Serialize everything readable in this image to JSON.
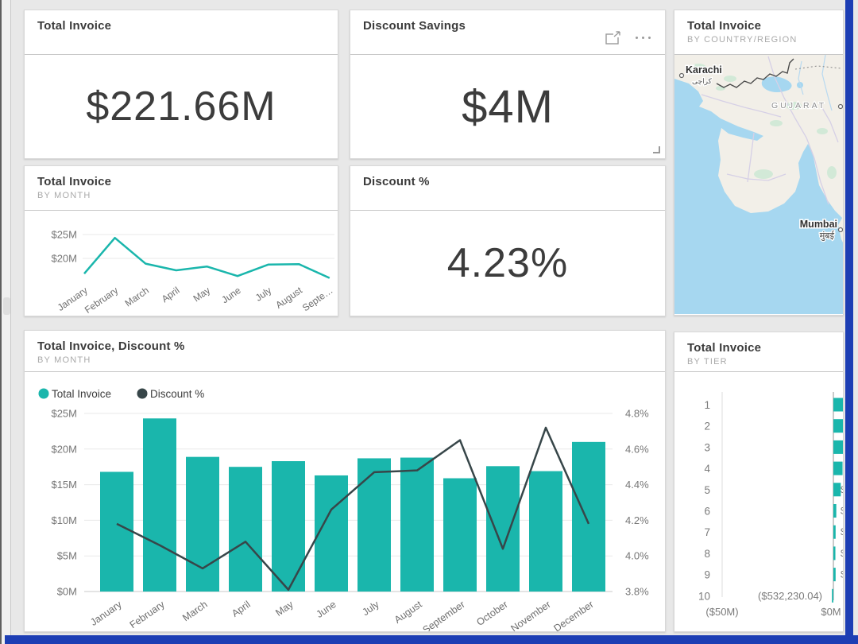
{
  "window": {
    "background": "#e8e8e8",
    "frame_color": "#1d3eb4",
    "scrollbar_track": "#f0f0f0",
    "scrollbar_thumb": "#dedede"
  },
  "colors": {
    "teal": "#1AB6AC",
    "dark": "#374649",
    "title": "#3b3b3b",
    "subtitle": "#a9a9a9",
    "axis_text": "#767676",
    "gridline": "#e9e9e9",
    "map_sea": "#A6D7F0",
    "map_land": "#F2EFE8",
    "map_green": "#CFE9D6"
  },
  "tiles": {
    "total_invoice": {
      "title": "Total Invoice",
      "value": "$221.66M"
    },
    "discount_savings": {
      "title": "Discount Savings",
      "value": "$4M",
      "icons": [
        "focus-mode-icon",
        "more-options-icon",
        "resize-handle"
      ]
    },
    "map": {
      "title": "Total Invoice",
      "subtitle": "BY COUNTRY/REGION",
      "labels": {
        "karachi": "Karachi",
        "karachi_native": "كراچى",
        "gujarat": "GUJARAT",
        "city_partial": "A",
        "mumbai": "Mumbai",
        "mumbai_native": "मुंबई"
      }
    },
    "invoice_by_month": {
      "title": "Total Invoice",
      "subtitle": "BY MONTH"
    },
    "discount_pct": {
      "title": "Discount %",
      "value": "4.23%"
    },
    "combo": {
      "title": "Total Invoice, Discount %",
      "subtitle": "BY MONTH",
      "legend": [
        "Total Invoice",
        "Discount %"
      ]
    },
    "tier": {
      "title": "Total Invoice",
      "subtitle": "BY TIER"
    }
  },
  "chart_data": [
    {
      "id": "card-total-invoice",
      "type": "card",
      "title": "Total Invoice",
      "value": "$221.66M"
    },
    {
      "id": "card-discount-savings",
      "type": "card",
      "title": "Discount Savings",
      "value": "$4M"
    },
    {
      "id": "card-discount-pct",
      "type": "card",
      "title": "Discount %",
      "value": "4.23%"
    },
    {
      "id": "invoice-by-month",
      "type": "line",
      "title": "Total Invoice",
      "subtitle": "BY MONTH",
      "categories": [
        "January",
        "February",
        "March",
        "April",
        "May",
        "June",
        "July",
        "August",
        "Septe…"
      ],
      "values": [
        16.8,
        24.3,
        18.9,
        17.5,
        18.3,
        16.3,
        18.7,
        18.8,
        15.9
      ],
      "unit": "$M",
      "ytick_labels": [
        "$25M",
        "$20M"
      ],
      "ytick_values": [
        25,
        20
      ],
      "grid": true,
      "legend_position": "none"
    },
    {
      "id": "invoice-discount-by-month",
      "type": "combo",
      "title": "Total Invoice, Discount %",
      "subtitle": "BY MONTH",
      "categories": [
        "January",
        "February",
        "March",
        "April",
        "May",
        "June",
        "July",
        "August",
        "September",
        "October",
        "November",
        "December"
      ],
      "series": [
        {
          "name": "Total Invoice",
          "type": "bar",
          "axis": "left",
          "values": [
            16.8,
            24.3,
            18.9,
            17.5,
            18.3,
            16.3,
            18.7,
            18.8,
            15.9,
            17.6,
            16.9,
            21.0
          ]
        },
        {
          "name": "Discount %",
          "type": "line",
          "axis": "right",
          "values": [
            4.18,
            4.06,
            3.93,
            4.08,
            3.81,
            4.26,
            4.47,
            4.48,
            4.65,
            4.04,
            4.72,
            4.18
          ]
        }
      ],
      "y_left": {
        "tick_labels": [
          "$25M",
          "$20M",
          "$15M",
          "$10M",
          "$5M",
          "$0M"
        ],
        "tick_values": [
          25,
          20,
          15,
          10,
          5,
          0
        ],
        "min": 0,
        "max": 25
      },
      "y_right": {
        "tick_labels": [
          "4.8%",
          "4.6%",
          "4.4%",
          "4.2%",
          "4.0%",
          "3.8%"
        ],
        "tick_values": [
          4.8,
          4.6,
          4.4,
          4.2,
          4.0,
          3.8
        ],
        "min": 3.8,
        "max": 4.8
      },
      "grid": true,
      "legend_position": "top-left"
    },
    {
      "id": "invoice-by-tier",
      "type": "bar-horizontal",
      "title": "Total Invoice",
      "subtitle": "BY TIER",
      "categories": [
        "1",
        "2",
        "3",
        "4",
        "5",
        "6",
        "7",
        "8",
        "9",
        "10"
      ],
      "values_musd": [
        7.5,
        7.5,
        6.9,
        4.1,
        3.3,
        1.3,
        1.0,
        0.9,
        1.0,
        -0.53
      ],
      "bars_clipped_at_right_edge": true,
      "xtick_labels": [
        "($50M)",
        "$0M"
      ],
      "xtick_values": [
        -50,
        0
      ],
      "tier10_data_label": "($532,230.04)",
      "partial_data_label": "$",
      "partial_label_rows": [
        5,
        6,
        7,
        8,
        9
      ]
    },
    {
      "id": "map-invoice-by-region",
      "type": "map",
      "title": "Total Invoice",
      "subtitle": "BY COUNTRY/REGION",
      "visible_labels": [
        "Karachi",
        "كراچى",
        "GUJARAT",
        "A",
        "Mumbai",
        "मुंबई"
      ]
    }
  ]
}
